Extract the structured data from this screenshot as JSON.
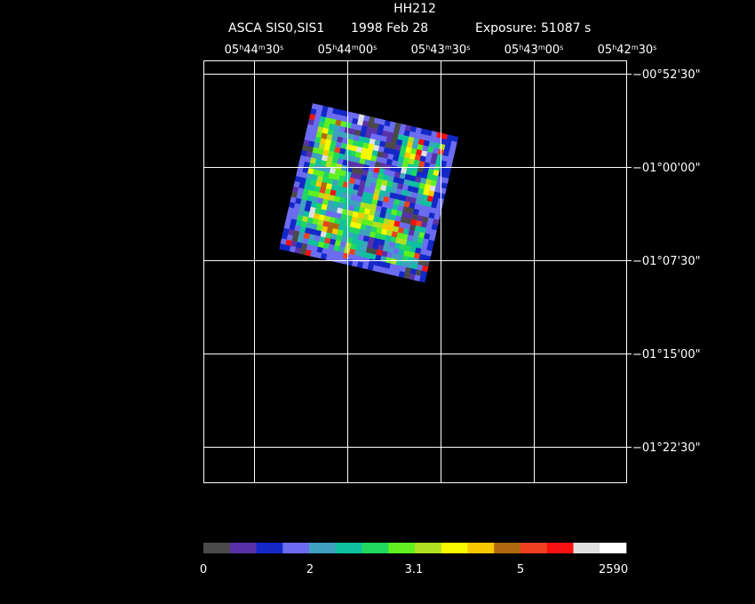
{
  "header": {
    "title": "HH212",
    "instrument": "ASCA SIS0,SIS1",
    "date": "1998 Feb 28",
    "exposure": "Exposure: 51087 s"
  },
  "ra_labels": [
    [
      "05",
      "h",
      "44",
      "m",
      "30",
      "s"
    ],
    [
      "05",
      "h",
      "44",
      "m",
      "00",
      "s"
    ],
    [
      "05",
      "h",
      "43",
      "m",
      "30",
      "s"
    ],
    [
      "05",
      "h",
      "43",
      "m",
      "00",
      "s"
    ],
    [
      "05",
      "h",
      "42",
      "m",
      "30",
      "s"
    ]
  ],
  "dec_labels": [
    "−00°52'30\"",
    "−01°00'00\"",
    "−01°07'30\"",
    "−01°15'00\"",
    "−01°22'30\""
  ],
  "colorbar": {
    "colors": [
      "#4a4a4a",
      "#5a32a8",
      "#1428c8",
      "#6c6cf0",
      "#40a0c0",
      "#10c0a0",
      "#20d860",
      "#60f020",
      "#b0e020",
      "#f8f800",
      "#f8c800",
      "#b06810",
      "#f04020",
      "#f81010",
      "#e0e0e0",
      "#ffffff"
    ],
    "labels": [
      "0",
      "2",
      "3.1",
      "5",
      "2590"
    ]
  }
}
